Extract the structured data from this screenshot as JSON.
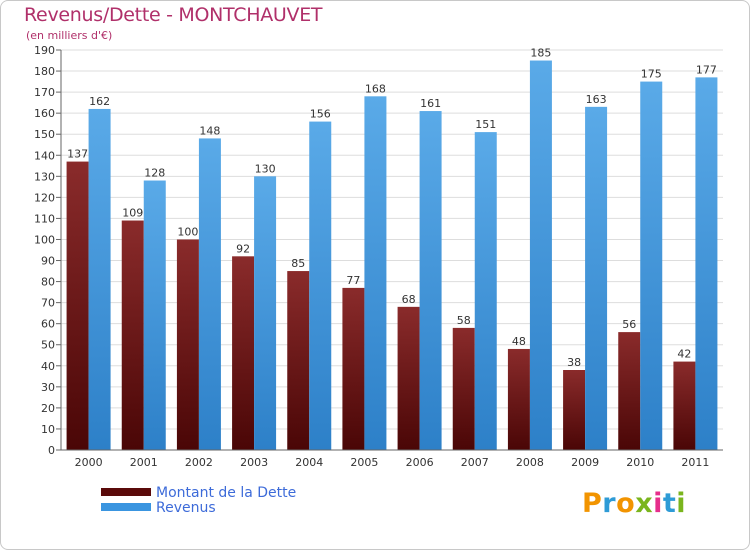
{
  "title": "Revenus/Dette - MONTCHAUVET",
  "subtitle": "(en milliers d'€)",
  "logo": {
    "text": "Proxiti",
    "colors": [
      "#f29400",
      "#2e9bd6",
      "#f29400",
      "#7ab51d",
      "#e62e8b",
      "#2e9bd6",
      "#7ab51d"
    ]
  },
  "colors": {
    "dette": "#6b1414",
    "revenus": "#3a95e0",
    "title": "#b0306a"
  },
  "chart_data": {
    "type": "bar",
    "categories": [
      "2000",
      "2001",
      "2002",
      "2003",
      "2004",
      "2005",
      "2006",
      "2007",
      "2008",
      "2009",
      "2010",
      "2011"
    ],
    "series": [
      {
        "name": "Montant de la Dette",
        "values": [
          137,
          109,
          100,
          92,
          85,
          77,
          68,
          58,
          48,
          38,
          56,
          42
        ]
      },
      {
        "name": "Revenus",
        "values": [
          162,
          128,
          148,
          130,
          156,
          168,
          161,
          151,
          185,
          163,
          175,
          177
        ]
      }
    ],
    "ylim": [
      0,
      190
    ],
    "ytick_step": 10,
    "grid": true,
    "legend": "bottom-left"
  }
}
